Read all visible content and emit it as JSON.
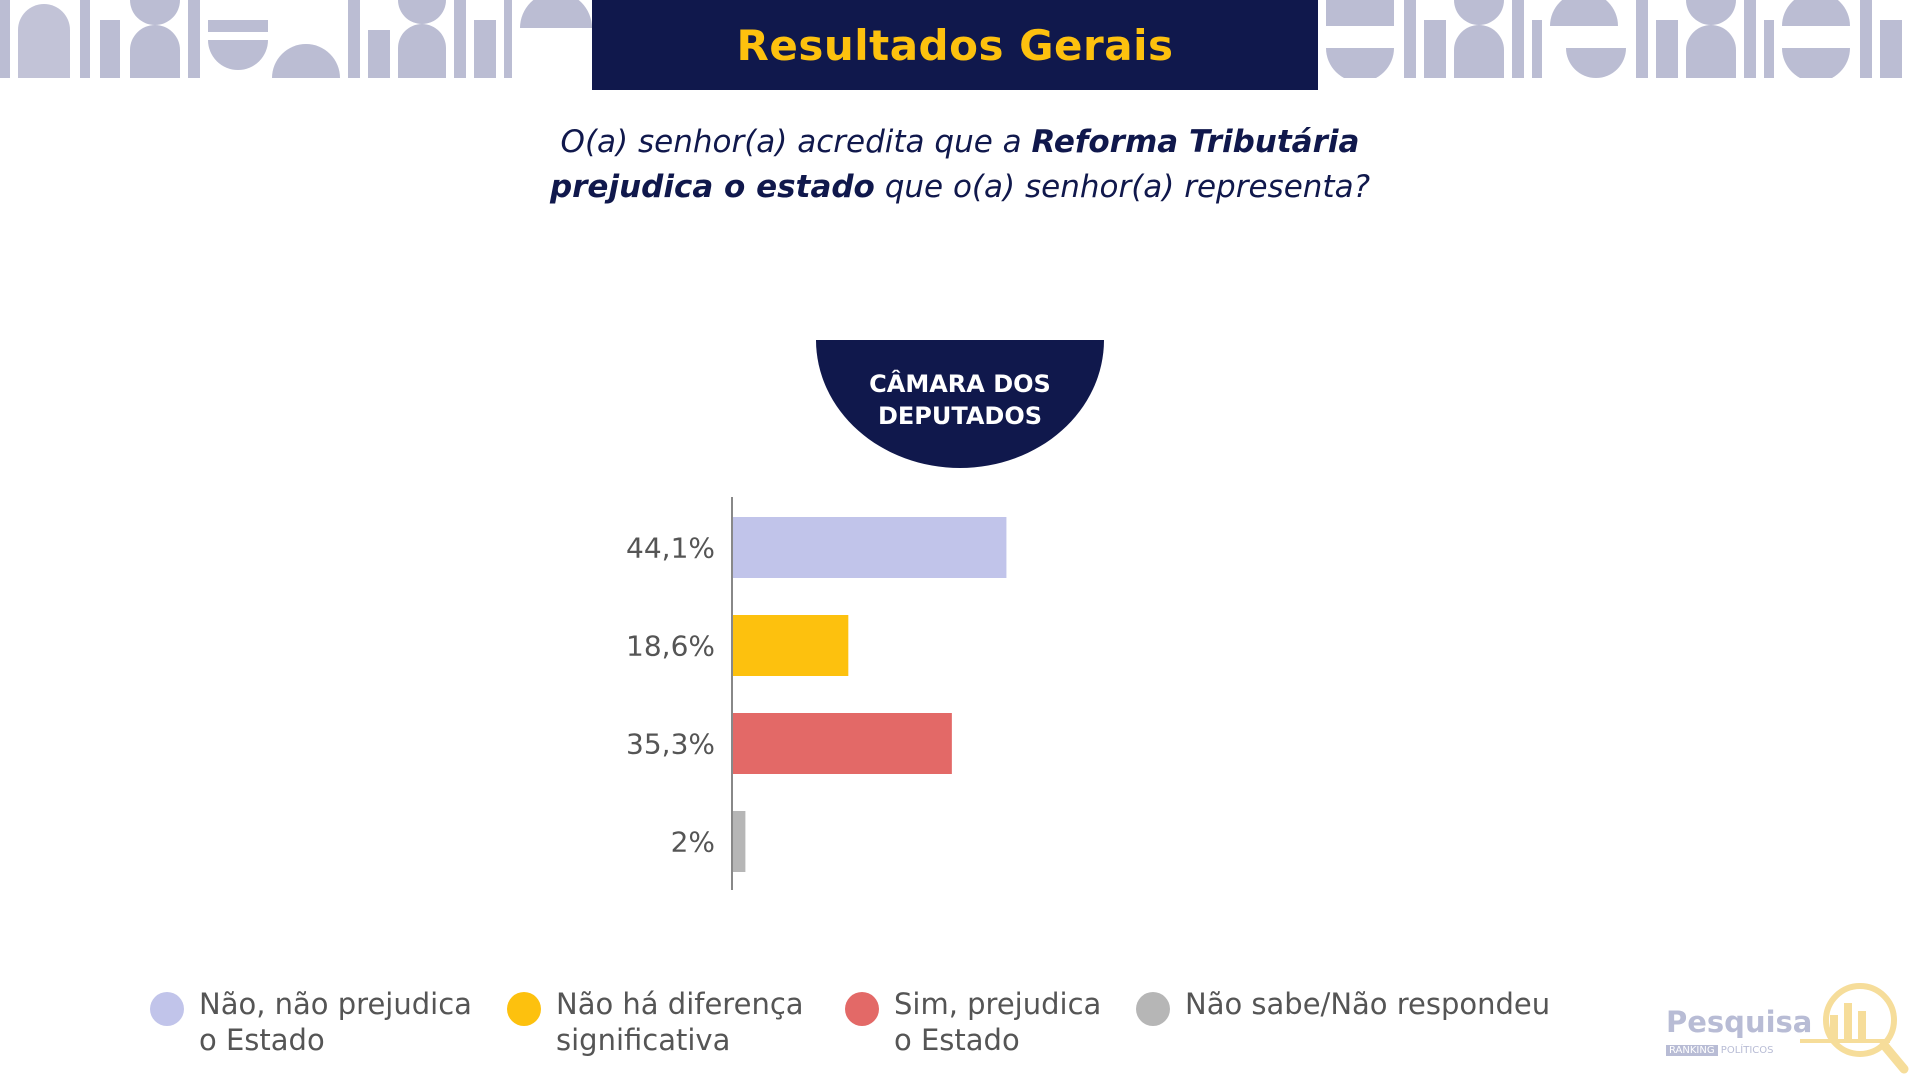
{
  "colors": {
    "navy": "#10184c",
    "gold": "#fdc10e",
    "decor": "#bbbdd3",
    "axis": "#888888",
    "label": "#555555"
  },
  "header": {
    "title": "Resultados Gerais"
  },
  "question": {
    "part1": "O(a) senhor(a) acredita que a ",
    "bold1": "Reforma Tributária",
    "bold2": "prejudica o estado",
    "part2": " que o(a) senhor(a) representa?"
  },
  "badge": {
    "line1": "CÂMARA DOS",
    "line2": "DEPUTADOS"
  },
  "chart_data": {
    "type": "bar",
    "orientation": "horizontal",
    "title": "CÂMARA DOS DEPUTADOS",
    "categories": [
      "Não, não prejudica o Estado",
      "Não há diferença significativa",
      "Sim, prejudica o Estado",
      "Não sabe/Não respondeu"
    ],
    "values": [
      44.1,
      18.6,
      35.3,
      2
    ],
    "value_labels": [
      "44,1%",
      "18,6%",
      "35,3%",
      "2%"
    ],
    "colors": [
      "#c1c4ea",
      "#fdc10e",
      "#e36967",
      "#b6b6b6"
    ],
    "xlim": [
      0,
      100
    ],
    "unit": "%",
    "grid": false,
    "legend_position": "bottom"
  },
  "legend": [
    {
      "line1": "Não, não prejudica",
      "line2": "o Estado",
      "color": "#c1c4ea"
    },
    {
      "line1": "Não há diferença",
      "line2": "significativa",
      "color": "#fdc10e"
    },
    {
      "line1": "Sim, prejudica",
      "line2": "o Estado",
      "color": "#e36967"
    },
    {
      "line1": "Não sabe/Não respondeu",
      "line2": "",
      "color": "#b6b6b6"
    }
  ],
  "logo": {
    "word": "Pesquisa",
    "sub1": "RANKING",
    "sub2": "POLÍTICOS",
    "icon": "magnifier-bar-chart-icon"
  }
}
